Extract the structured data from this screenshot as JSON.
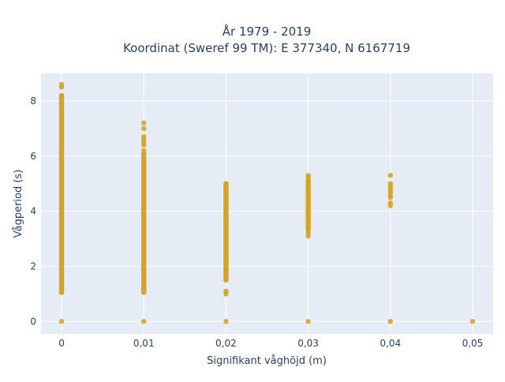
{
  "chart_data": {
    "type": "scatter",
    "title_line1": "År 1979 - 2019",
    "title_line2": "Koordinat (Sweref 99 TM): E 377340, N 6167719",
    "xlabel": "Signifikant våghöjd (m)",
    "ylabel": "Vågperiod (s)",
    "xlim": [
      -0.0025,
      0.0525
    ],
    "ylim": [
      -0.45,
      9.0
    ],
    "grid": true,
    "x_ticks": [
      {
        "value": 0,
        "label": "0"
      },
      {
        "value": 0.01,
        "label": "0,01"
      },
      {
        "value": 0.02,
        "label": "0,02"
      },
      {
        "value": 0.03,
        "label": "0,03"
      },
      {
        "value": 0.04,
        "label": "0,04"
      },
      {
        "value": 0.05,
        "label": "0,05"
      }
    ],
    "y_ticks": [
      {
        "value": 0,
        "label": "0"
      },
      {
        "value": 2,
        "label": "2"
      },
      {
        "value": 4,
        "label": "4"
      },
      {
        "value": 6,
        "label": "6"
      },
      {
        "value": 8,
        "label": "8"
      }
    ],
    "marker_color": "#D4A017",
    "series": [
      {
        "x": 0,
        "dense_range": [
          1.05,
          8.2
        ],
        "points": [
          0,
          8.5,
          8.6
        ]
      },
      {
        "x": 0.01,
        "dense_range": [
          1.05,
          6.1
        ],
        "points": [
          0,
          6.2,
          6.4,
          6.5,
          6.6,
          6.7,
          7.0,
          7.2
        ]
      },
      {
        "x": 0.02,
        "dense_range": [
          1.5,
          5.0
        ],
        "points": [
          0,
          1.0,
          1.1
        ]
      },
      {
        "x": 0.03,
        "dense_range": [
          3.4,
          5.1
        ],
        "points": [
          0,
          3.1,
          3.2,
          3.3,
          5.2,
          5.3
        ]
      },
      {
        "x": 0.04,
        "dense_range": [],
        "points": [
          0,
          4.2,
          4.3,
          4.5,
          4.6,
          4.7,
          4.8,
          4.9,
          5.0,
          5.3
        ]
      },
      {
        "x": 0.05,
        "dense_range": [],
        "points": [
          0
        ]
      }
    ]
  }
}
